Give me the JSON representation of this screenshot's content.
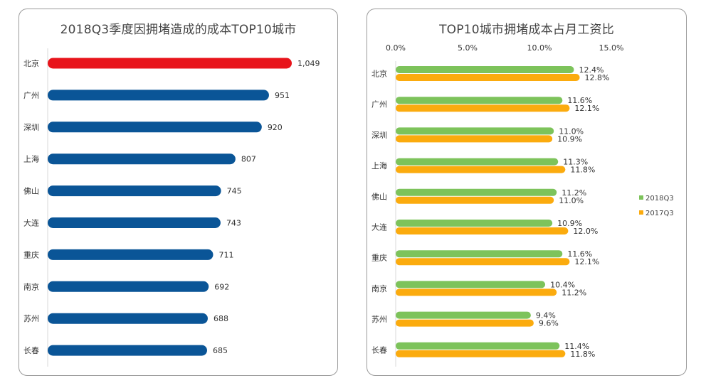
{
  "colors": {
    "highlight": "#e8141b",
    "bar": "#0a5597",
    "series_2018": "#7dc35b",
    "series_2017": "#fbab0e",
    "axis": "#d9d9d9",
    "frame": "#9a9a9a"
  },
  "chart_data": [
    {
      "type": "bar",
      "orientation": "horizontal",
      "title": "2018Q3季度因拥堵造成的成本TOP10城市",
      "categories": [
        "北京",
        "广州",
        "深圳",
        "上海",
        "佛山",
        "大连",
        "重庆",
        "南京",
        "苏州",
        "长春"
      ],
      "values": [
        1049,
        951,
        920,
        807,
        745,
        743,
        711,
        692,
        688,
        685
      ],
      "value_labels": [
        "1,049",
        "951",
        "920",
        "807",
        "745",
        "743",
        "711",
        "692",
        "688",
        "685"
      ],
      "highlight_index": 0,
      "xlim": [
        0,
        1100
      ],
      "grid": false
    },
    {
      "type": "bar",
      "orientation": "horizontal",
      "title": "TOP10城市拥堵成本占月工资比",
      "categories": [
        "北京",
        "广州",
        "深圳",
        "上海",
        "佛山",
        "大连",
        "重庆",
        "南京",
        "苏州",
        "长春"
      ],
      "series": [
        {
          "name": "2018Q3",
          "values": [
            12.4,
            11.6,
            11.0,
            11.3,
            11.2,
            10.9,
            11.6,
            10.4,
            9.4,
            11.4
          ],
          "labels": [
            "12.4%",
            "11.6%",
            "11.0%",
            "11.3%",
            "11.2%",
            "10.9%",
            "11.6%",
            "10.4%",
            "9.4%",
            "11.4%"
          ]
        },
        {
          "name": "2017Q3",
          "values": [
            12.8,
            12.1,
            10.9,
            11.8,
            11.0,
            12.0,
            12.1,
            11.2,
            9.6,
            11.8
          ],
          "labels": [
            "12.8%",
            "12.1%",
            "10.9%",
            "11.8%",
            "11.0%",
            "12.0%",
            "12.1%",
            "11.2%",
            "9.6%",
            "11.8%"
          ]
        }
      ],
      "xticks": [
        "0.0%",
        "5.0%",
        "10.0%",
        "15.0%"
      ],
      "xlim": [
        0,
        15
      ],
      "legend_position": "right",
      "grid": false
    }
  ]
}
